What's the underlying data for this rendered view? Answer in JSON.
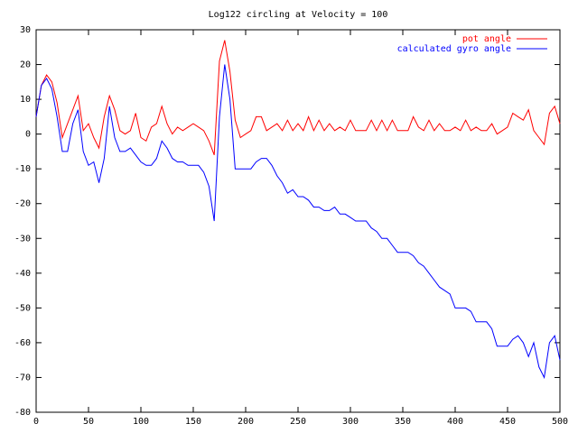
{
  "chart_data": {
    "type": "line",
    "title": "Log122  circling at Velocity = 100",
    "x": [
      0,
      5,
      10,
      15,
      20,
      25,
      30,
      35,
      40,
      45,
      50,
      55,
      60,
      65,
      70,
      75,
      80,
      85,
      90,
      95,
      100,
      105,
      110,
      115,
      120,
      125,
      130,
      135,
      140,
      145,
      150,
      155,
      160,
      165,
      170,
      175,
      180,
      185,
      190,
      195,
      200,
      205,
      210,
      215,
      220,
      225,
      230,
      235,
      240,
      245,
      250,
      255,
      260,
      265,
      270,
      275,
      280,
      285,
      290,
      295,
      300,
      305,
      310,
      315,
      320,
      325,
      330,
      335,
      340,
      345,
      350,
      355,
      360,
      365,
      370,
      375,
      380,
      385,
      390,
      395,
      400,
      405,
      410,
      415,
      420,
      425,
      430,
      435,
      440,
      445,
      450,
      455,
      460,
      465,
      470,
      475,
      480,
      485,
      490,
      495,
      500
    ],
    "series": [
      {
        "name": "pot angle",
        "color": "#ff0000",
        "values": [
          5,
          14,
          17,
          15,
          9,
          -1,
          3,
          7,
          11,
          1,
          3,
          -1,
          -4,
          5,
          11,
          7,
          1,
          0,
          1,
          6,
          -1,
          -2,
          2,
          3,
          8,
          3,
          0,
          2,
          1,
          2,
          3,
          2,
          1,
          -2,
          -6,
          21,
          27,
          18,
          4,
          -1,
          0,
          1,
          5,
          5,
          1,
          2,
          3,
          1,
          4,
          1,
          3,
          1,
          5,
          1,
          4,
          1,
          3,
          1,
          2,
          1,
          4,
          1,
          1,
          1,
          4,
          1,
          4,
          1,
          4,
          1,
          1,
          1,
          5,
          2,
          1,
          4,
          1,
          3,
          1,
          1,
          2,
          1,
          4,
          1,
          2,
          1,
          1,
          3,
          0,
          1,
          2,
          6,
          5,
          4,
          7,
          1,
          -1,
          -3,
          6,
          8,
          3
        ]
      },
      {
        "name": "calculated gyro angle",
        "color": "#0000ff",
        "values": [
          5,
          14,
          16,
          13,
          5,
          -5,
          -5,
          3,
          7,
          -5,
          -9,
          -8,
          -14,
          -7,
          8,
          -1,
          -5,
          -5,
          -4,
          -6,
          -8,
          -9,
          -9,
          -7,
          -2,
          -4,
          -7,
          -8,
          -8,
          -9,
          -9,
          -9,
          -11,
          -15,
          -25,
          5,
          20,
          10,
          -10,
          -10,
          -10,
          -10,
          -8,
          -7,
          -7,
          -9,
          -12,
          -14,
          -17,
          -16,
          -18,
          -18,
          -19,
          -21,
          -21,
          -22,
          -22,
          -21,
          -23,
          -23,
          -24,
          -25,
          -25,
          -25,
          -27,
          -28,
          -30,
          -30,
          -32,
          -34,
          -34,
          -34,
          -35,
          -37,
          -38,
          -40,
          -42,
          -44,
          -45,
          -46,
          -50,
          -50,
          -50,
          -51,
          -54,
          -54,
          -54,
          -56,
          -61,
          -61,
          -61,
          -59,
          -58,
          -60,
          -64,
          -60,
          -67,
          -70,
          -60,
          -58,
          -65
        ]
      }
    ],
    "xlim": [
      0,
      500
    ],
    "ylim": [
      -80,
      30
    ],
    "xticks": [
      0,
      50,
      100,
      150,
      200,
      250,
      300,
      350,
      400,
      450,
      500
    ],
    "yticks": [
      -80,
      -70,
      -60,
      -50,
      -40,
      -30,
      -20,
      -10,
      0,
      10,
      20,
      30
    ],
    "legend": "top-right"
  }
}
